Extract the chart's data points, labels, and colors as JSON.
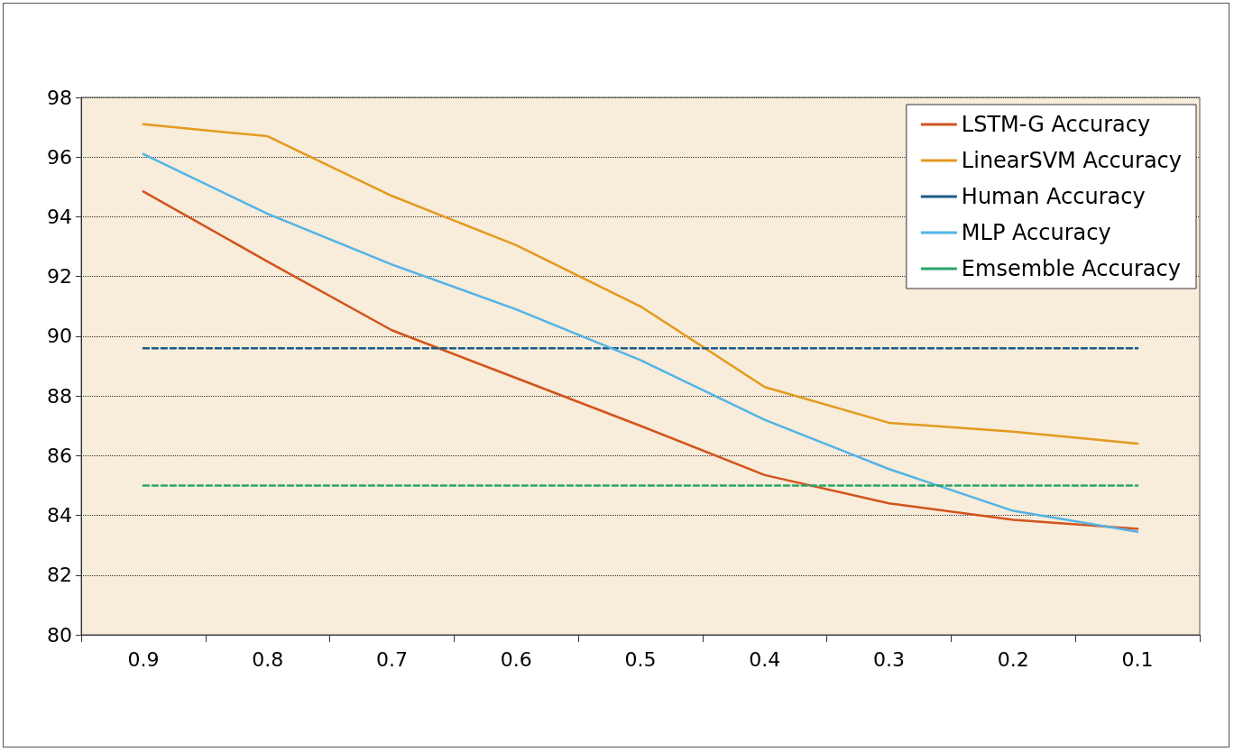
{
  "chart_data": {
    "type": "line",
    "categories": [
      "0.9",
      "0.8",
      "0.7",
      "0.6",
      "0.5",
      "0.4",
      "0.3",
      "0.2",
      "0.1"
    ],
    "ylim": [
      80,
      98
    ],
    "yticks": [
      80,
      82,
      84,
      86,
      88,
      90,
      92,
      94,
      96,
      98
    ],
    "grid": "y",
    "legend": "top right",
    "marker": "none",
    "series": [
      {
        "name": "LSTM-G Accuracy",
        "color": "#d2541c",
        "line_style": "solid",
        "values": [
          94.85,
          92.5,
          90.2,
          88.6,
          87.0,
          85.35,
          84.4,
          83.85,
          83.55
        ]
      },
      {
        "name": "LinearSVM Accuracy",
        "color": "#e39a1e",
        "line_style": "solid",
        "values": [
          97.1,
          96.7,
          94.7,
          93.05,
          91.0,
          88.3,
          87.1,
          86.8,
          86.4
        ]
      },
      {
        "name": "Human Accuracy",
        "color": "#1d5c86",
        "line_style": "dashed",
        "values": [
          89.6,
          89.6,
          89.6,
          89.6,
          89.6,
          89.6,
          89.6,
          89.6,
          89.6
        ]
      },
      {
        "name": "MLP Accuracy",
        "color": "#52b4e6",
        "line_style": "solid",
        "values": [
          96.1,
          94.1,
          92.4,
          90.9,
          89.2,
          87.2,
          85.55,
          84.15,
          83.45
        ]
      },
      {
        "name": "Emsemble Accuracy",
        "color": "#2ba46a",
        "line_style": "dashed",
        "values": [
          85.0,
          85.0,
          85.0,
          85.0,
          85.0,
          85.0,
          85.0,
          85.0,
          85.0
        ]
      }
    ]
  }
}
